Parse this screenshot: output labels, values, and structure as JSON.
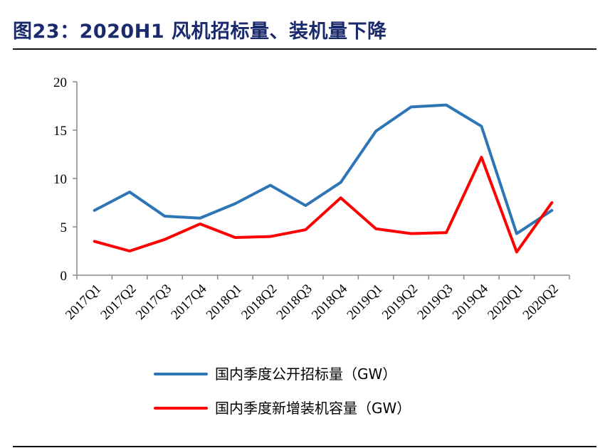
{
  "title": "图23：2020H1 风机招标量、装机量下降",
  "chart_data": {
    "type": "line",
    "title": "图23：2020H1 风机招标量、装机量下降",
    "xlabel": "",
    "ylabel": "",
    "ylim": [
      0,
      20
    ],
    "yticks": [
      0,
      5,
      10,
      15,
      20
    ],
    "grid": false,
    "legend_position": "bottom",
    "categories": [
      "2017Q1",
      "2017Q2",
      "2017Q3",
      "2017Q4",
      "2018Q1",
      "2018Q2",
      "2018Q3",
      "2018Q4",
      "2019Q1",
      "2019Q2",
      "2019Q3",
      "2019Q4",
      "2020Q1",
      "2020Q2"
    ],
    "series": [
      {
        "name": "国内季度公开招标量（GW）",
        "color": "#2e75b6",
        "values": [
          6.7,
          8.6,
          6.1,
          5.9,
          7.4,
          9.3,
          7.2,
          9.6,
          14.9,
          17.4,
          17.6,
          15.4,
          4.3,
          6.7
        ]
      },
      {
        "name": "国内季度新增装机容量（GW）",
        "color": "#ff0000",
        "values": [
          3.5,
          2.5,
          3.7,
          5.3,
          3.9,
          4.0,
          4.7,
          8.0,
          4.8,
          4.3,
          4.4,
          12.2,
          2.4,
          7.5
        ]
      }
    ]
  }
}
